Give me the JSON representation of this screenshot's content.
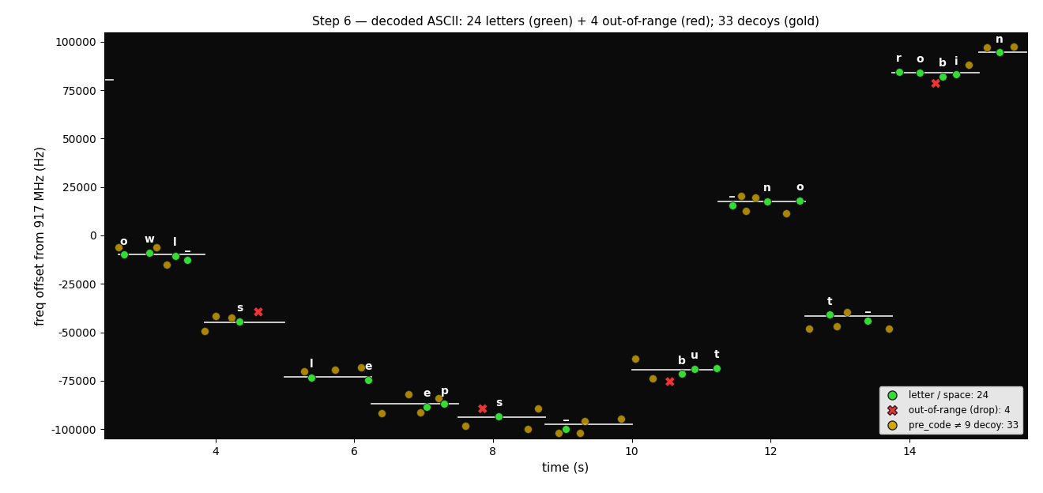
{
  "chart_data": {
    "type": "scatter",
    "title": "Step 6 — decoded ASCII: 24 letters (green) + 4 out-of-range (red); 33 decoys (gold)",
    "x_label": "time (s)",
    "y_label": "freq offset from 917 MHz (Hz)",
    "xlim": [
      2.4,
      15.7
    ],
    "ylim": [
      -105000,
      105000
    ],
    "xticks": [
      4,
      6,
      8,
      10,
      12,
      14
    ],
    "yticks": [
      -100000,
      -75000,
      -50000,
      -25000,
      0,
      25000,
      50000,
      75000,
      100000
    ],
    "grid": false,
    "legend": "lower right",
    "segments": [
      {
        "x": [
          2.4,
          2.52
        ],
        "y": 80500
      },
      {
        "x": [
          2.6,
          3.85
        ],
        "y": -10000
      },
      {
        "x": [
          3.85,
          5.0
        ],
        "y": -45000
      },
      {
        "x": [
          5.0,
          6.25
        ],
        "y": -73000
      },
      {
        "x": [
          6.25,
          7.5
        ],
        "y": -87000
      },
      {
        "x": [
          7.5,
          8.75
        ],
        "y": -94000
      },
      {
        "x": [
          8.75,
          10.0
        ],
        "y": -97500
      },
      {
        "x": [
          10.0,
          11.25
        ],
        "y": -69500
      },
      {
        "x": [
          11.25,
          12.5
        ],
        "y": 17500
      },
      {
        "x": [
          12.5,
          13.75
        ],
        "y": -41500
      },
      {
        "x": [
          13.75,
          15.0
        ],
        "y": 84000
      },
      {
        "x": [
          15.0,
          15.7
        ],
        "y": 94500
      }
    ],
    "series": [
      {
        "name": "pre_code ≠ 9 decoy: 33",
        "color": "#d4a600",
        "marker": "o",
        "x": [
          2.6,
          3.15,
          3.3,
          3.85,
          4.0,
          4.23,
          5.28,
          5.73,
          6.1,
          6.4,
          6.78,
          6.95,
          7.22,
          7.6,
          8.5,
          8.65,
          8.95,
          9.25,
          9.32,
          9.85,
          10.05,
          10.3,
          11.58,
          11.65,
          11.78,
          12.22,
          12.55,
          12.95,
          13.1,
          13.7,
          14.85,
          15.12,
          15.5
        ],
        "values": [
          -6000,
          -6000,
          -15000,
          -49500,
          -41500,
          -42500,
          -70000,
          -69500,
          -68000,
          -92000,
          -82000,
          -91500,
          -84000,
          -98500,
          -100000,
          -89500,
          -102000,
          -102000,
          -96000,
          -94500,
          -63500,
          -74000,
          20500,
          12500,
          19500,
          11500,
          -48000,
          -47000,
          -39500,
          -48000,
          88000,
          97000,
          97500
        ]
      },
      {
        "name": "letter / space: 24",
        "color": "#33dd33",
        "marker": "o",
        "x": [
          2.68,
          3.05,
          3.42,
          3.6,
          4.35,
          5.38,
          6.2,
          7.05,
          7.3,
          8.08,
          9.05,
          10.72,
          10.9,
          11.22,
          11.45,
          11.95,
          12.42,
          12.85,
          13.4,
          13.85,
          14.15,
          14.48,
          14.67,
          15.3
        ],
        "values": [
          -10000,
          -9000,
          -10500,
          -12500,
          -44500,
          -73500,
          -74500,
          -88500,
          -87000,
          -93500,
          -100000,
          -71500,
          -69000,
          -68500,
          15500,
          17500,
          18000,
          -41000,
          -44000,
          84500,
          84000,
          82000,
          83000,
          94500
        ],
        "labels": [
          "o",
          "w",
          "l",
          "_",
          "s",
          "l",
          "e",
          "e",
          "p",
          "s",
          "_",
          "b",
          "u",
          "t",
          "_",
          "n",
          "o",
          "t",
          "_",
          "r",
          "o",
          "b",
          "i",
          "n"
        ]
      },
      {
        "name": "out-of-range (drop): 4",
        "color": "#ee3333",
        "marker": "X",
        "x": [
          4.62,
          7.85,
          10.55,
          14.38
        ],
        "values": [
          -39500,
          -89500,
          -75500,
          78500
        ]
      }
    ]
  }
}
